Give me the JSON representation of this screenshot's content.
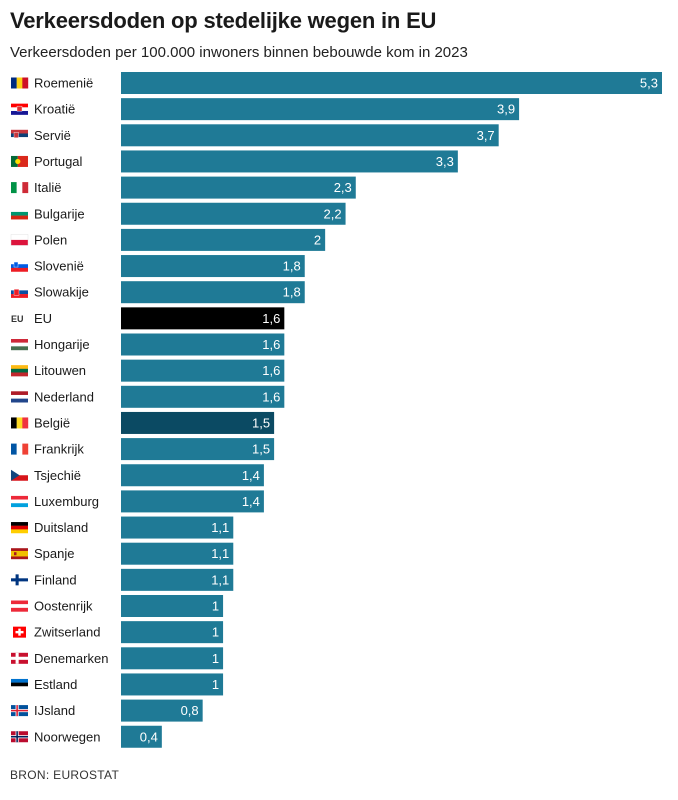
{
  "title": "Verkeersdoden op stedelijke wegen in EU",
  "subtitle": "Verkeersdoden per 100.000 inwoners binnen bebouwde kom in 2023",
  "source": "BRON: EUROSTAT",
  "colors": {
    "bar": "#1f7a96",
    "eu": "#000000",
    "belgium": "#0b4a63",
    "value_text": "#ffffff"
  },
  "chart_data": {
    "type": "bar",
    "orientation": "horizontal",
    "title": "Verkeersdoden op stedelijke wegen in EU",
    "subtitle": "Verkeersdoden per 100.000 inwoners binnen bebouwde kom in 2023",
    "xlim": [
      0,
      5.3
    ],
    "grid": false,
    "categories": [
      "Roemenië",
      "Kroatië",
      "Servië",
      "Portugal",
      "Italië",
      "Bulgarije",
      "Polen",
      "Slovenië",
      "Slowakije",
      "EU",
      "Hongarije",
      "Litouwen",
      "Nederland",
      "België",
      "Frankrijk",
      "Tsjechië",
      "Luxemburg",
      "Duitsland",
      "Spanje",
      "Finland",
      "Oostenrijk",
      "Zwitserland",
      "Denemarken",
      "Estland",
      "IJsland",
      "Noorwegen"
    ],
    "values": [
      5.3,
      3.9,
      3.7,
      3.3,
      2.3,
      2.2,
      2,
      1.8,
      1.8,
      1.6,
      1.6,
      1.6,
      1.6,
      1.5,
      1.5,
      1.4,
      1.4,
      1.1,
      1.1,
      1.1,
      1,
      1,
      1,
      1,
      0.8,
      0.4
    ],
    "value_labels": [
      "5,3",
      "3,9",
      "3,7",
      "3,3",
      "2,3",
      "2,2",
      "2",
      "1,8",
      "1,8",
      "1,6",
      "1,6",
      "1,6",
      "1,6",
      "1,5",
      "1,5",
      "1,4",
      "1,4",
      "1,1",
      "1,1",
      "1,1",
      "1",
      "1",
      "1",
      "1",
      "0,8",
      "0,4"
    ],
    "highlight": {
      "EU": "eu",
      "België": "belgium"
    },
    "flags": [
      "romania-flag-icon",
      "croatia-flag-icon",
      "serbia-flag-icon",
      "portugal-flag-icon",
      "italy-flag-icon",
      "bulgaria-flag-icon",
      "poland-flag-icon",
      "slovenia-flag-icon",
      "slovakia-flag-icon",
      "eu-flag-icon",
      "hungary-flag-icon",
      "lithuania-flag-icon",
      "netherlands-flag-icon",
      "belgium-flag-icon",
      "france-flag-icon",
      "czechia-flag-icon",
      "luxembourg-flag-icon",
      "germany-flag-icon",
      "spain-flag-icon",
      "finland-flag-icon",
      "austria-flag-icon",
      "switzerland-flag-icon",
      "denmark-flag-icon",
      "estonia-flag-icon",
      "iceland-flag-icon",
      "norway-flag-icon"
    ],
    "eu_flag_label": "EU"
  }
}
